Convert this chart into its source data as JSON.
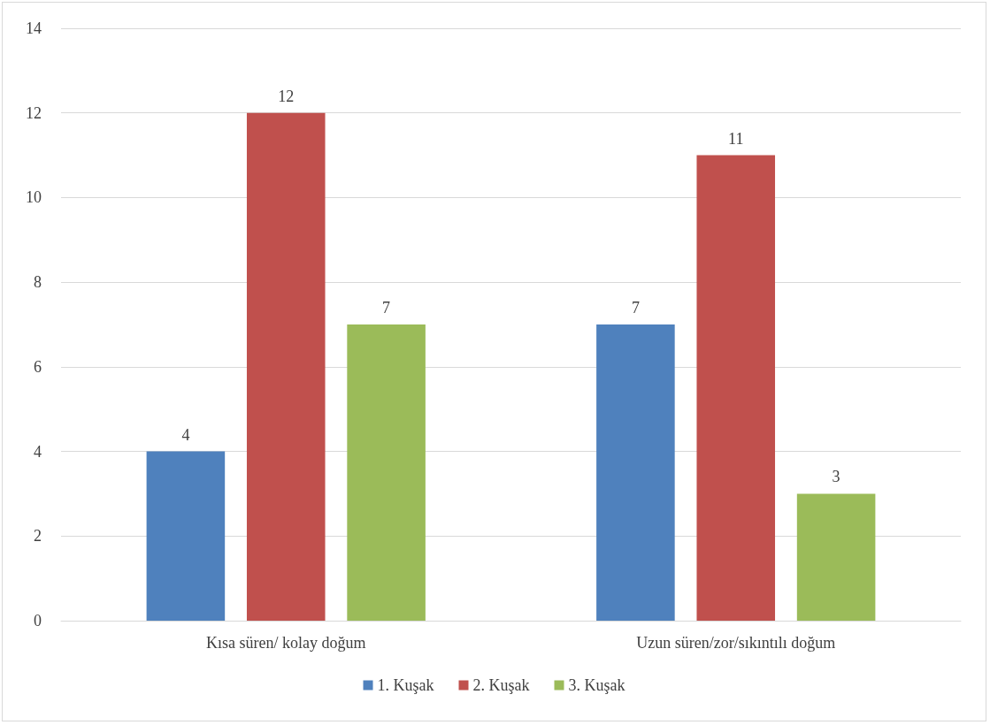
{
  "chart_data": {
    "type": "bar",
    "categories": [
      "Kısa süren/ kolay doğum",
      "Uzun süren/zor/sıkıntılı doğum"
    ],
    "series": [
      {
        "name": "1. Kuşak",
        "color": "#4f81bd",
        "values": [
          4,
          7
        ]
      },
      {
        "name": "2. Kuşak",
        "color": "#c0504d",
        "values": [
          12,
          11
        ]
      },
      {
        "name": "3. Kuşak",
        "color": "#9bbb59",
        "values": [
          7,
          3
        ]
      }
    ],
    "ylim": [
      0,
      14
    ],
    "yticks": [
      0,
      2,
      4,
      6,
      8,
      10,
      12,
      14
    ],
    "grid": "y",
    "legend": "bottom",
    "data_labels": true
  }
}
